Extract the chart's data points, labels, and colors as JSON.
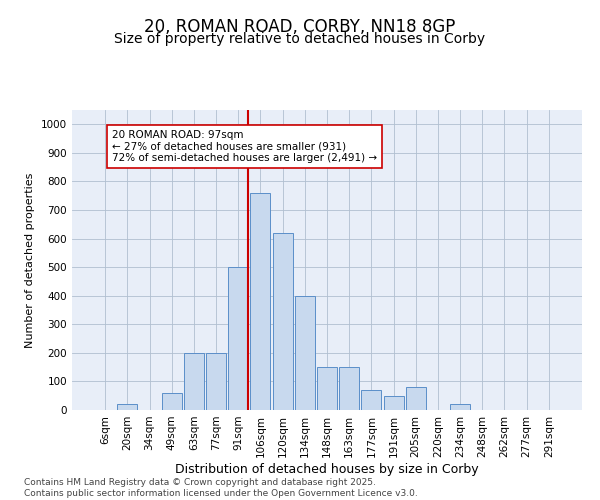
{
  "title": "20, ROMAN ROAD, CORBY, NN18 8GP",
  "subtitle": "Size of property relative to detached houses in Corby",
  "xlabel": "Distribution of detached houses by size in Corby",
  "ylabel": "Number of detached properties",
  "categories": [
    "6sqm",
    "20sqm",
    "34sqm",
    "49sqm",
    "63sqm",
    "77sqm",
    "91sqm",
    "106sqm",
    "120sqm",
    "134sqm",
    "148sqm",
    "163sqm",
    "177sqm",
    "191sqm",
    "205sqm",
    "220sqm",
    "234sqm",
    "248sqm",
    "262sqm",
    "277sqm",
    "291sqm"
  ],
  "bar_heights": [
    0,
    20,
    0,
    60,
    200,
    200,
    500,
    760,
    620,
    400,
    150,
    150,
    70,
    50,
    80,
    0,
    20,
    0,
    0,
    0,
    0
  ],
  "bar_color": "#c8d9ee",
  "bar_edgecolor": "#5b8fc9",
  "vline_color": "#cc0000",
  "annotation_text": "20 ROMAN ROAD: 97sqm\n← 27% of detached houses are smaller (931)\n72% of semi-detached houses are larger (2,491) →",
  "annotation_box_edgecolor": "#cc0000",
  "annotation_box_facecolor": "#ffffff",
  "ylim": [
    0,
    1050
  ],
  "yticks": [
    0,
    100,
    200,
    300,
    400,
    500,
    600,
    700,
    800,
    900,
    1000
  ],
  "bg_color": "#e8eef8",
  "grid_color": "#b0bfd0",
  "footer_text": "Contains HM Land Registry data © Crown copyright and database right 2025.\nContains public sector information licensed under the Open Government Licence v3.0.",
  "title_fontsize": 12,
  "subtitle_fontsize": 10,
  "xlabel_fontsize": 9,
  "ylabel_fontsize": 8,
  "tick_fontsize": 7.5,
  "annotation_fontsize": 7.5,
  "footer_fontsize": 6.5
}
